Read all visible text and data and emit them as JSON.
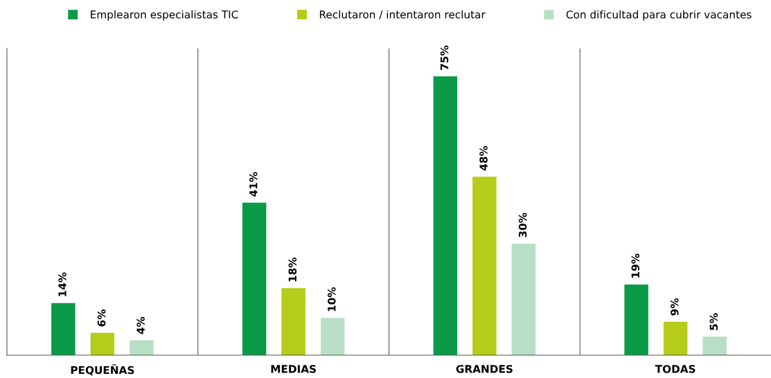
{
  "chart_data": {
    "type": "bar",
    "categories": [
      "PEQUEÑAS",
      "MEDIAS",
      "GRANDES",
      "TODAS"
    ],
    "series": [
      {
        "name": "Emplearon especialistas TIC",
        "color": "#0a9a48",
        "values": [
          14,
          41,
          75,
          19
        ],
        "value_labels": [
          "14%",
          "41%",
          "75%",
          "19%"
        ]
      },
      {
        "name": "Reclutaron / intentaron reclutar",
        "color": "#b5cc1a",
        "values": [
          6,
          18,
          48,
          9
        ],
        "value_labels": [
          "6%",
          "18%",
          "48%",
          "9%"
        ]
      },
      {
        "name": "Con dificultad para cubrir vacantes",
        "color": "#b8dfc6",
        "values": [
          4,
          10,
          30,
          5
        ],
        "value_labels": [
          "4%",
          "10%",
          "30%",
          "5%"
        ]
      }
    ],
    "legend": "top",
    "grid": false
  }
}
